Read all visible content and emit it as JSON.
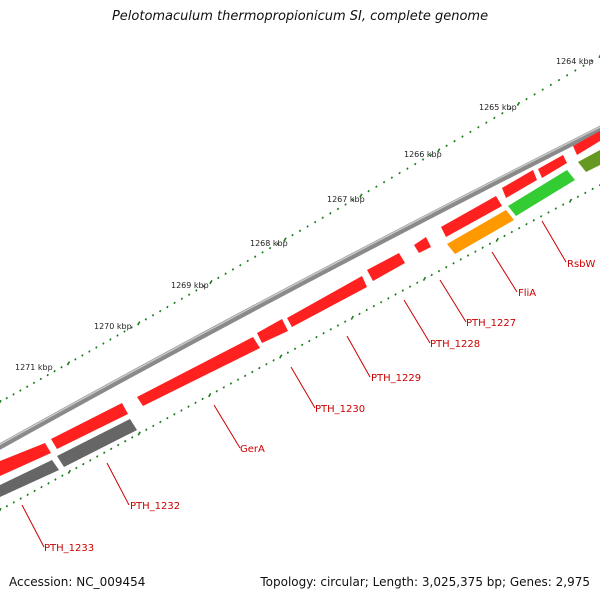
{
  "title": "Pelotomaculum thermopropionicum SI, complete genome",
  "footer": {
    "accession": "Accession: NC_009454",
    "summary": "Topology: circular; Length: 3,025,375 bp; Genes: 2,975"
  },
  "colors": {
    "backbone": "#8a8a8a",
    "tick": "#1b7a1b",
    "label_line": "#cc0000",
    "label_text": "#cc0000"
  },
  "ticks": [
    {
      "label": "1264 kbp"
    },
    {
      "label": "1265 kbp"
    },
    {
      "label": "1266 kbp"
    },
    {
      "label": "1267 kbp"
    },
    {
      "label": "1268 kbp"
    },
    {
      "label": "1269 kbp"
    },
    {
      "label": "1270 kbp"
    },
    {
      "label": "1271 kbp"
    }
  ],
  "genes": [
    {
      "label": "RsbW",
      "color": "#33cc33"
    },
    {
      "label": "FliA",
      "color": "#ff9900"
    },
    {
      "label": "PTH_1227",
      "color": "#ff2020"
    },
    {
      "label": "PTH_1228",
      "color": "#ff2020"
    },
    {
      "label": "PTH_1229",
      "color": "#ff2020"
    },
    {
      "label": "PTH_1230",
      "color": "#ff2020"
    },
    {
      "label": "GerA",
      "color": "#ff2020"
    },
    {
      "label": "PTH_1232",
      "color": "#666666"
    },
    {
      "label": "PTH_1233",
      "color": "#666666"
    }
  ]
}
